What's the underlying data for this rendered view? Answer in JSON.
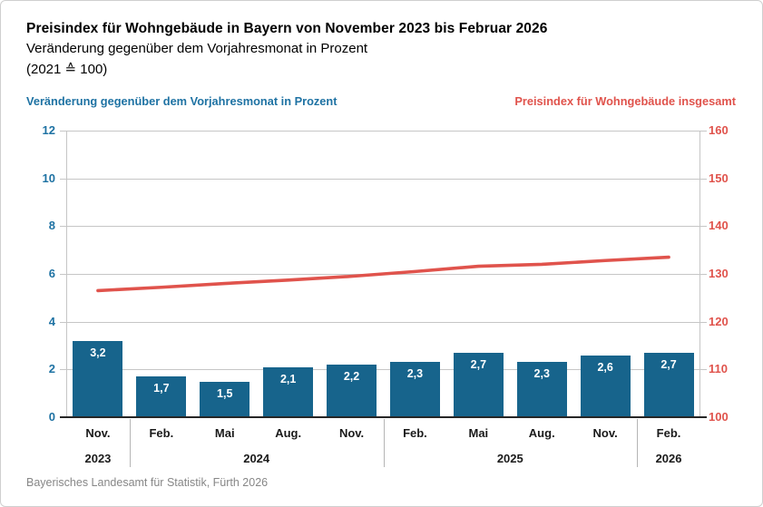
{
  "header": {
    "title": "Preisindex für Wohngebäude in Bayern von November 2023 bis Februar 2026",
    "subtitle": "Veränderung gegenüber dem Vorjahresmonat in Prozent",
    "base_note": "(2021 ≙ 100)"
  },
  "axis_labels": {
    "left": "Veränderung gegenüber dem Vorjahresmonat in Prozent",
    "right": "Preisindex für Wohngebäude insgesamt"
  },
  "footer": {
    "source": "Bayerisches Landesamt für Statistik, Fürth 2026"
  },
  "colors": {
    "bar_blue": "#17648C",
    "line_red": "#E0534C",
    "left_axis_text": "#1E72A3",
    "right_axis_text": "#E0534C",
    "gridline": "#C6C6C6",
    "x_axis_line": "#262626",
    "year_separator": "#B5B5B5",
    "source_text": "#878787",
    "title_text": "#000000",
    "bar_value_text": "#FFFFFF"
  },
  "chart_data": {
    "type": "bar",
    "title": "Preisindex für Wohngebäude in Bayern von November 2023 bis Februar 2026",
    "subtitle": "Veränderung gegenüber dem Vorjahresmonat in Prozent (2021 ≙ 100)",
    "categories": [
      "Nov. 2023",
      "Feb. 2024",
      "Mai 2024",
      "Aug. 2024",
      "Nov. 2024",
      "Feb. 2025",
      "Mai 2025",
      "Aug. 2025",
      "Nov. 2025",
      "Feb. 2026"
    ],
    "month_labels": [
      "Nov.",
      "Feb.",
      "Mai",
      "Aug.",
      "Nov.",
      "Feb.",
      "Mai",
      "Aug.",
      "Nov.",
      "Feb."
    ],
    "year_groups": [
      {
        "label": "2023",
        "span": [
          0,
          0
        ]
      },
      {
        "label": "2024",
        "span": [
          1,
          4
        ]
      },
      {
        "label": "2025",
        "span": [
          5,
          8
        ]
      },
      {
        "label": "2026",
        "span": [
          9,
          9
        ]
      }
    ],
    "series": [
      {
        "name": "Veränderung gegenüber dem Vorjahresmonat in Prozent",
        "type": "bar",
        "axis": "left",
        "color": "#17648C",
        "values": [
          3.2,
          1.7,
          1.5,
          2.1,
          2.2,
          2.3,
          2.7,
          2.3,
          2.6,
          2.7
        ],
        "display_values": [
          "3,2",
          "1,7",
          "1,5",
          "2,1",
          "2,2",
          "2,3",
          "2,7",
          "2,3",
          "2,6",
          "2,7"
        ]
      },
      {
        "name": "Preisindex für Wohngebäude insgesamt",
        "type": "line",
        "axis": "right",
        "color": "#E0534C",
        "values": [
          126.5,
          127.2,
          128.0,
          128.7,
          129.5,
          130.5,
          131.6,
          132.0,
          132.8,
          133.5
        ]
      }
    ],
    "left_axis": {
      "label": "Veränderung gegenüber dem Vorjahresmonat in Prozent",
      "min": 0,
      "max": 12,
      "ticks": [
        0,
        2,
        4,
        6,
        8,
        10,
        12
      ]
    },
    "right_axis": {
      "label": "Preisindex für Wohngebäude insgesamt",
      "min": 100,
      "max": 160,
      "ticks": [
        100,
        110,
        120,
        130,
        140,
        150,
        160
      ]
    },
    "grid": true,
    "legend_position": "top"
  }
}
